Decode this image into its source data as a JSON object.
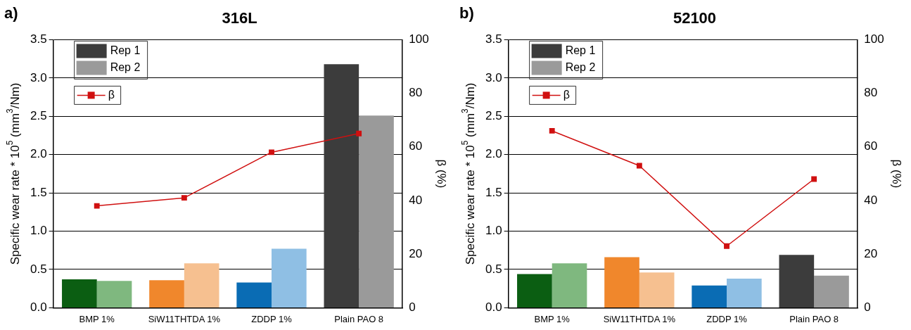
{
  "chart_data": [
    {
      "type": "bar",
      "title": "316L",
      "annotations": [
        "a)"
      ],
      "ylabel": "Specific wear rate * 10$^{5}$ (mm$^{3}$/Nm)",
      "y2label": "β (%)",
      "categories": [
        "BMP 1%",
        "SiW11THTDA 1%",
        "ZDDP 1%",
        "Plain PAO 8"
      ],
      "series": [
        {
          "name": "Rep 1",
          "color": "#3c3c3c",
          "colors": [
            "#0b5e12",
            "#f0872c",
            "#0a6cb4",
            "#3c3c3c"
          ],
          "values": [
            0.37,
            0.36,
            0.33,
            3.18
          ]
        },
        {
          "name": "Rep 2",
          "color": "#9a9a9a",
          "colors": [
            "#7fb87f",
            "#f6c090",
            "#8fbfe4",
            "#9a9a9a"
          ],
          "values": [
            0.35,
            0.58,
            0.77,
            2.51
          ]
        },
        {
          "name": "β",
          "type": "line",
          "axis": "y2",
          "color": "#d01010",
          "values": [
            38,
            41,
            58,
            65
          ]
        }
      ],
      "ylim": [
        0,
        3.5
      ],
      "yticks": [
        {
          "value": 0,
          "label": "0.0"
        },
        {
          "value": 0.5,
          "label": "0.5"
        },
        {
          "value": 1,
          "label": "1.0"
        },
        {
          "value": 1.5,
          "label": "1.5"
        },
        {
          "value": 2,
          "label": "2.0"
        },
        {
          "value": 2.5,
          "label": "2.5"
        },
        {
          "value": 3,
          "label": "3.0"
        },
        {
          "value": 3.5,
          "label": "3.5"
        }
      ],
      "y2lim": [
        0,
        100
      ],
      "y2ticks": [
        0,
        20,
        40,
        60,
        80,
        100
      ],
      "grid": "y",
      "legend": "top left",
      "marker": "square",
      "line_style": "solid"
    },
    {
      "type": "bar",
      "title": "52100",
      "annotations": [
        "b)"
      ],
      "ylabel": "Specific wear rate * 10$^{5}$ (mm$^{3}$/Nm)",
      "y2label": "β (%)",
      "categories": [
        "BMP 1%",
        "SiW11THTDA 1%",
        "ZDDP 1%",
        "Plain PAO 8"
      ],
      "series": [
        {
          "name": "Rep 1",
          "color": "#3c3c3c",
          "colors": [
            "#0b5e12",
            "#f0872c",
            "#0a6cb4",
            "#3c3c3c"
          ],
          "values": [
            0.44,
            0.66,
            0.29,
            0.69
          ]
        },
        {
          "name": "Rep 2",
          "color": "#9a9a9a",
          "colors": [
            "#7fb87f",
            "#f6c090",
            "#8fbfe4",
            "#9a9a9a"
          ],
          "values": [
            0.58,
            0.46,
            0.38,
            0.42
          ]
        },
        {
          "name": "β",
          "type": "line",
          "axis": "y2",
          "color": "#d01010",
          "values": [
            66,
            53,
            23,
            48
          ]
        }
      ],
      "ylim": [
        0,
        3.5
      ],
      "yticks": [
        {
          "value": 0,
          "label": "0.0"
        },
        {
          "value": 0.5,
          "label": "0.5"
        },
        {
          "value": 1,
          "label": "1.0"
        },
        {
          "value": 1.5,
          "label": "1.5"
        },
        {
          "value": 2,
          "label": "2.0"
        },
        {
          "value": 2.5,
          "label": "2.5"
        },
        {
          "value": 3,
          "label": "3.0"
        },
        {
          "value": 3.5,
          "label": "3.5"
        }
      ],
      "y2lim": [
        0,
        100
      ],
      "y2ticks": [
        0,
        20,
        40,
        60,
        80,
        100
      ],
      "grid": "y",
      "legend": "top left",
      "marker": "square",
      "line_style": "solid"
    }
  ]
}
